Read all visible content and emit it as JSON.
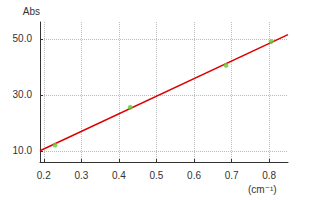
{
  "chart_data": {
    "type": "scatter",
    "x_label": "(cm⁻¹)",
    "y_label": "Abs",
    "series": [
      {
        "type": "scatter",
        "color": "#66cc33",
        "marker": "circle",
        "x": [
          0.23,
          0.43,
          0.685,
          0.805
        ],
        "values": [
          12,
          25.5,
          40.5,
          49
        ]
      },
      {
        "type": "line",
        "color": "#dd0000",
        "line_style": "solid",
        "x": [
          0.19,
          0.85
        ],
        "values": [
          10,
          51.5
        ]
      }
    ],
    "xlim": [
      0.19,
      0.85
    ],
    "xticks": [
      0.2,
      0.3,
      0.4,
      0.5,
      0.6,
      0.7,
      0.8
    ],
    "ylim": [
      6,
      56
    ],
    "yticks": [
      {
        "value": 10,
        "label": "10.0"
      },
      {
        "value": 30,
        "label": "30.0"
      },
      {
        "value": 50,
        "label": "50.0"
      }
    ],
    "grid": true
  }
}
